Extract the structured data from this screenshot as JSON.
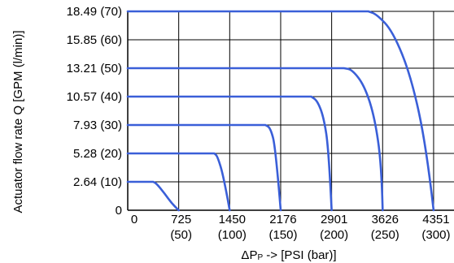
{
  "chart_data": {
    "type": "line",
    "ylabel": "Actuator flow rate Q [GPM (l/min)]",
    "xlabel_main": "ΔP",
    "xlabel_sub": "P",
    "xlabel_rest": " -> [PSI (bar)]",
    "x_ticks": [
      {
        "value": 0,
        "label": "0",
        "sub": ""
      },
      {
        "value": 50,
        "label": "725",
        "sub": "(50)"
      },
      {
        "value": 100,
        "label": "1450",
        "sub": "(100)"
      },
      {
        "value": 150,
        "label": "2176",
        "sub": "(150)"
      },
      {
        "value": 200,
        "label": "2901",
        "sub": "(200)"
      },
      {
        "value": 250,
        "label": "3626",
        "sub": "(250)"
      },
      {
        "value": 300,
        "label": "4351",
        "sub": "(300)"
      }
    ],
    "y_ticks": [
      {
        "value": 0,
        "label": "0"
      },
      {
        "value": 10,
        "label": "2.64 (10)"
      },
      {
        "value": 20,
        "label": "5.28 (20)"
      },
      {
        "value": 30,
        "label": "7.93 (30)"
      },
      {
        "value": 40,
        "label": "10.57 (40)"
      },
      {
        "value": 50,
        "label": "13.21 (50)"
      },
      {
        "value": 60,
        "label": "15.85 (60)"
      },
      {
        "value": 70,
        "label": "18.49 (70)"
      }
    ],
    "xlim": [
      0,
      320
    ],
    "ylim": [
      0,
      70
    ],
    "grid": true,
    "line_color": "#3a5fd8",
    "series": [
      {
        "values": [
          [
            0,
            10
          ],
          [
            25,
            10
          ],
          [
            28,
            9.5
          ],
          [
            36,
            6
          ],
          [
            44,
            2
          ],
          [
            50,
            0
          ]
        ]
      },
      {
        "values": [
          [
            0,
            20
          ],
          [
            85,
            20
          ],
          [
            88,
            19
          ],
          [
            94,
            12
          ],
          [
            100,
            0
          ]
        ]
      },
      {
        "values": [
          [
            0,
            30
          ],
          [
            135,
            30
          ],
          [
            140,
            29
          ],
          [
            145,
            22
          ],
          [
            150,
            0
          ]
        ]
      },
      {
        "values": [
          [
            0,
            40
          ],
          [
            180,
            40
          ],
          [
            186,
            38.5
          ],
          [
            192,
            33
          ],
          [
            197,
            22
          ],
          [
            200,
            0
          ]
        ]
      },
      {
        "values": [
          [
            0,
            50
          ],
          [
            212,
            50
          ],
          [
            220,
            49.5
          ],
          [
            232,
            44
          ],
          [
            242,
            33
          ],
          [
            249,
            16
          ],
          [
            250,
            0
          ]
        ]
      },
      {
        "values": [
          [
            0,
            70
          ],
          [
            236,
            70
          ],
          [
            244,
            69
          ],
          [
            260,
            63
          ],
          [
            278,
            47
          ],
          [
            293,
            22
          ],
          [
            300,
            0
          ]
        ]
      }
    ]
  }
}
